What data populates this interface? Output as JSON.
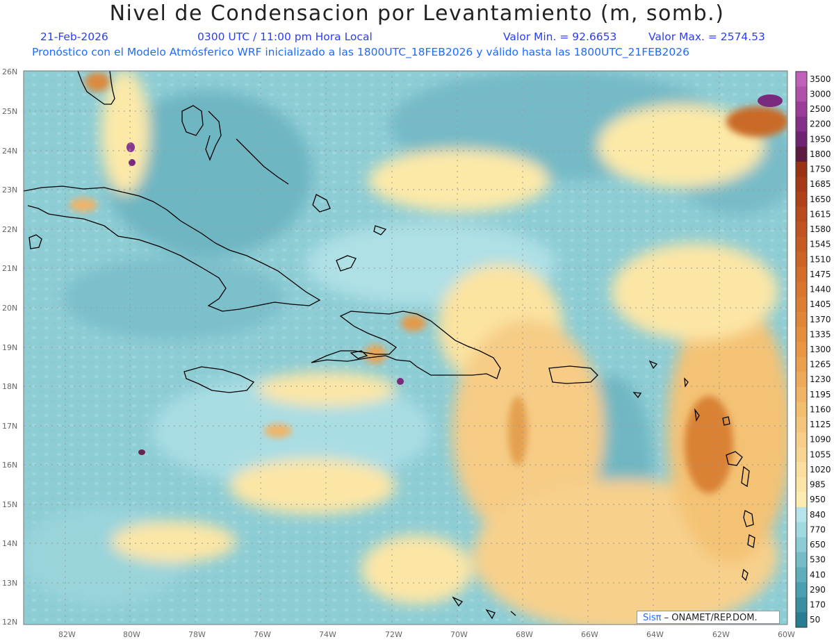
{
  "header": {
    "title": "Nivel de Condensacion por Levantamiento (m, somb.)",
    "date": "21-Feb-2026",
    "time": "0300 UTC / 11:00 pm Hora Local",
    "vmin": "Valor Min. = 92.6653",
    "vmax": "Valor Max. = 2574.53",
    "model_line": "Pronóstico con el Modelo Atmósferico WRF inicializado a las 1800UTC_18FEB2026 y válido hasta las  1800UTC_21FEB2026"
  },
  "lat_labels": [
    "26N",
    "25N",
    "24N",
    "23N",
    "22N",
    "21N",
    "20N",
    "19N",
    "18N",
    "17N",
    "16N",
    "15N",
    "14N",
    "13N",
    "12N"
  ],
  "lon_labels": [
    "82W",
    "80W",
    "78W",
    "76W",
    "74W",
    "72W",
    "70W",
    "68W",
    "66W",
    "64W",
    "62W",
    "60W"
  ],
  "colorbar": {
    "levels": [
      "3500",
      "3000",
      "2500",
      "2200",
      "1950",
      "1800",
      "1750",
      "1685",
      "1650",
      "1615",
      "1580",
      "1545",
      "1510",
      "1475",
      "1440",
      "1405",
      "1370",
      "1335",
      "1300",
      "1265",
      "1230",
      "1195",
      "1160",
      "1125",
      "1090",
      "1055",
      "1020",
      "985",
      "950",
      "840",
      "770",
      "650",
      "530",
      "410",
      "290",
      "170",
      "50"
    ],
    "colors": [
      "#c060b8",
      "#b050a8",
      "#9a3c98",
      "#843088",
      "#6e2470",
      "#5c1a40",
      "#9a3214",
      "#a63a16",
      "#b04218",
      "#b84c1c",
      "#c05420",
      "#c65c22",
      "#cc6426",
      "#d26e2a",
      "#d8762e",
      "#dc7e32",
      "#e08638",
      "#e48e3e",
      "#e89644",
      "#eca04e",
      "#eeaa58",
      "#f0b464",
      "#f2be70",
      "#f4c67c",
      "#f6ce88",
      "#f8d692",
      "#fadf9e",
      "#fbe6a8",
      "#fcecb2",
      "#b6e4ea",
      "#a2d8e0",
      "#8ccad4",
      "#76bcc8",
      "#60aebc",
      "#4a9eae",
      "#3a8ea0",
      "#2a7c90"
    ]
  },
  "credit": {
    "brand": "Sisπ",
    "text": "– ONAMET/REP.DOM."
  },
  "map_colors": {
    "land_outline": "#000000",
    "grid": "#999999"
  }
}
